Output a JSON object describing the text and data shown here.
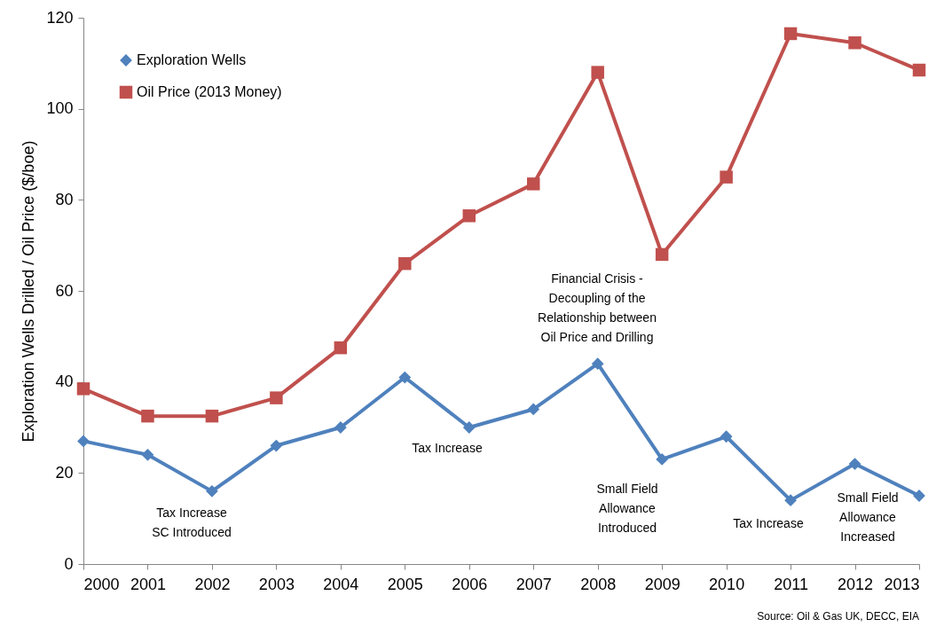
{
  "chart_data": {
    "type": "line",
    "ylabel": "Exploration Wells Drilled / Oil Price ($/boe)",
    "x": [
      2000,
      2001,
      2002,
      2003,
      2004,
      2005,
      2006,
      2007,
      2008,
      2009,
      2010,
      2011,
      2012,
      2013
    ],
    "xlim": [
      2000,
      2013
    ],
    "xticks": [
      2000,
      2001,
      2002,
      2003,
      2004,
      2005,
      2006,
      2007,
      2008,
      2009,
      2010,
      2011,
      2012,
      2013
    ],
    "ylim": [
      0,
      120
    ],
    "yticks": [
      0,
      20,
      40,
      60,
      80,
      100,
      120
    ],
    "series": [
      {
        "name": "Exploration Wells",
        "color": "#4f81bd",
        "marker": "diamond",
        "values": [
          27,
          24,
          16,
          26,
          30,
          41,
          30,
          34,
          44,
          23,
          28,
          14,
          22,
          15
        ]
      },
      {
        "name": "Oil Price (2013 Money)",
        "color": "#c0504d",
        "marker": "square",
        "values": [
          38.5,
          32.5,
          32.5,
          36.5,
          47.5,
          66,
          76.5,
          83.5,
          108,
          68,
          85,
          116.5,
          114.5,
          108.5
        ]
      }
    ],
    "legend": "top left",
    "annotations": [
      "Tax Increase\nSC Introduced",
      "Tax Increase",
      "Financial Crisis -\nDecoupling of the\nRelationship between\nOil Price and Drilling",
      "Small Field\nAllowance\nIntroduced",
      "Tax Increase",
      "Small Field\nAllowance\nIncreased",
      "Source: Oil & Gas UK, DECC, EIA"
    ]
  }
}
